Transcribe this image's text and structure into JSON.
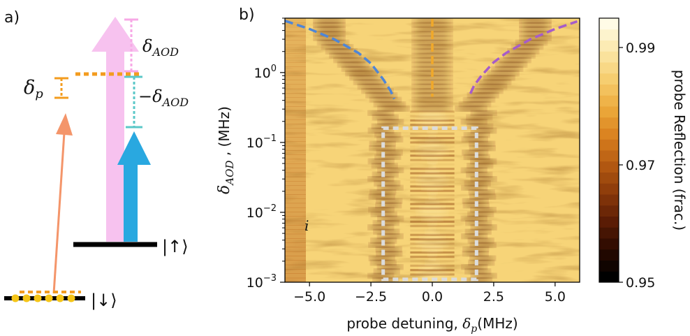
{
  "panel_a": {
    "label": "a)",
    "delta_p": {
      "sym": "δ",
      "sub": "p"
    },
    "delta_aod": {
      "sym": "δ",
      "sub": "AOD"
    },
    "neg_delta_aod": {
      "sym": "−δ",
      "sub": "AOD"
    },
    "ket_up": "|↑⟩",
    "ket_down": "|↓⟩",
    "colors": {
      "probe": "#f4956a",
      "pink": "#f7c2ef",
      "blue": "#29a8e0",
      "orange": "#f39c1f",
      "teal": "#5bc8c8",
      "atoms": "#f5c518"
    }
  },
  "chart_data": {
    "type": "heatmap",
    "panel_label": "b)",
    "xlabel": {
      "text": "probe detuning, ",
      "sym": "δ",
      "sub": "p",
      "unit": "(MHz)"
    },
    "ylabel": {
      "sym": "δ",
      "sub": "AOD",
      "unit": " , (MHz)"
    },
    "x_ticks": [
      -5.0,
      -2.5,
      0.0,
      2.5,
      5.0
    ],
    "x_tick_labels": [
      "−5.0",
      "−2.5",
      "0.0",
      "2.5",
      "5.0"
    ],
    "xlim": [
      -6.0,
      6.0
    ],
    "y_scale": "log",
    "ylim": [
      0.001,
      6.0
    ],
    "y_ticks": [
      {
        "v": 1.0,
        "base": "10",
        "exp": "0"
      },
      {
        "v": 0.1,
        "base": "10",
        "exp": "−1"
      },
      {
        "v": 0.01,
        "base": "10",
        "exp": "−2"
      },
      {
        "v": 0.001,
        "base": "10",
        "exp": "−3"
      }
    ],
    "colorbar": {
      "label": "probe Reflection (frac.)",
      "range": [
        0.95,
        0.995
      ],
      "ticks": [
        0.95,
        0.97,
        0.99
      ],
      "tick_labels": [
        "0.95",
        "0.97",
        "0.99"
      ],
      "colors": [
        "#000000",
        "#2a0a00",
        "#5c1d05",
        "#8a3a0a",
        "#b55a12",
        "#d9801e",
        "#ecaa3c",
        "#f6cd6e",
        "#fbe7a6",
        "#fffbe6"
      ]
    },
    "annotation": "i",
    "curves": [
      {
        "name": "blue-dashed",
        "color": "#4f86d6",
        "x": [
          -6.0,
          -5.0,
          -4.0,
          -3.0,
          -2.5,
          -2.0,
          -1.7,
          -1.55
        ],
        "y": [
          5.5,
          4.2,
          3.0,
          1.9,
          1.35,
          0.8,
          0.55,
          0.42
        ]
      },
      {
        "name": "purple-dashed",
        "color": "#a65cc9",
        "x": [
          1.55,
          1.7,
          2.0,
          2.5,
          3.0,
          4.0,
          5.0,
          5.9
        ],
        "y": [
          0.5,
          0.65,
          0.9,
          1.4,
          1.9,
          3.0,
          4.2,
          5.4
        ]
      },
      {
        "name": "orange-dashed",
        "color": "#f1a92a",
        "x": [
          0.0,
          0.0
        ],
        "y": [
          6.0,
          0.45
        ]
      }
    ],
    "highlight_box": {
      "color": "#dcdcdc",
      "x": [
        -2.0,
        1.8
      ],
      "y": [
        0.0011,
        0.16
      ]
    }
  }
}
